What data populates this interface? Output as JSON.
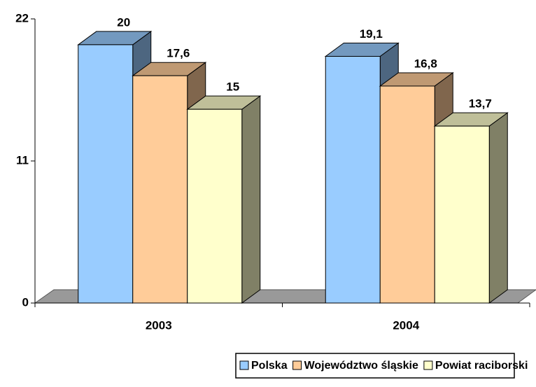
{
  "chart_data": {
    "type": "bar3d",
    "categories": [
      "2003",
      "2004"
    ],
    "series": [
      {
        "name": "Polska",
        "color": "#99ccff",
        "values": [
          20,
          19.1
        ],
        "value_labels": [
          "20",
          "19,1"
        ]
      },
      {
        "name": "Województwo śląskie",
        "color": "#ffcc99",
        "values": [
          17.6,
          16.8
        ],
        "value_labels": [
          "17,6",
          "16,8"
        ]
      },
      {
        "name": "Powiat raciborski",
        "color": "#ffffcc",
        "values": [
          15,
          13.7
        ],
        "value_labels": [
          "15",
          "13,7"
        ]
      }
    ],
    "ylim": [
      0,
      22
    ],
    "yticks": [
      0,
      11,
      22
    ]
  }
}
